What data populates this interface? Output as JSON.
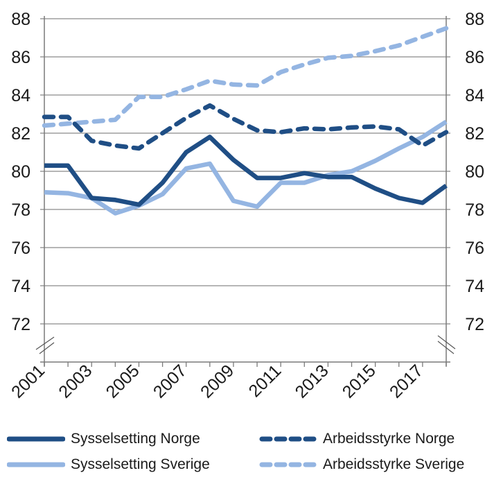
{
  "chart_data": {
    "type": "line",
    "title": "",
    "xlabel": "",
    "ylabel": "",
    "ylim": [
      72,
      88
    ],
    "y_axis_break": true,
    "y_ticks": [
      72,
      74,
      76,
      78,
      80,
      82,
      84,
      86,
      88
    ],
    "y_tick_labels": [
      "72",
      "74",
      "76",
      "78",
      "80",
      "82",
      "84",
      "86",
      "88"
    ],
    "secondary_y_ticks": [
      72,
      74,
      76,
      78,
      80,
      82,
      84,
      86,
      88
    ],
    "x": [
      2001,
      2002,
      2003,
      2004,
      2005,
      2006,
      2007,
      2008,
      2009,
      2010,
      2011,
      2012,
      2013,
      2014,
      2015,
      2016,
      2017,
      2018
    ],
    "x_tick_labels": [
      "2001",
      "2003",
      "2005",
      "2007",
      "2009",
      "2011",
      "2013",
      "2015",
      "2017"
    ],
    "grid": true,
    "legend_position": "bottom",
    "series": [
      {
        "name": "Sysselsetting Norge",
        "color": "#1f4e85",
        "style": "solid",
        "values": [
          80.3,
          80.3,
          78.6,
          78.5,
          78.25,
          79.4,
          81.0,
          81.8,
          80.6,
          79.65,
          79.65,
          79.9,
          79.7,
          79.7,
          79.1,
          78.6,
          78.35,
          79.25
        ]
      },
      {
        "name": "Sysselsetting Sverige",
        "color": "#94b5e2",
        "style": "solid",
        "values": [
          78.9,
          78.85,
          78.6,
          77.8,
          78.2,
          78.8,
          80.15,
          80.4,
          78.45,
          78.15,
          79.4,
          79.4,
          79.8,
          80.0,
          80.55,
          81.2,
          81.8,
          82.6
        ]
      },
      {
        "name": "Arbeidsstyrke Norge",
        "color": "#1f4e85",
        "style": "dashed",
        "values": [
          82.85,
          82.85,
          81.6,
          81.35,
          81.2,
          82.0,
          82.8,
          83.45,
          82.75,
          82.15,
          82.05,
          82.25,
          82.2,
          82.3,
          82.35,
          82.2,
          81.35,
          82.05
        ]
      },
      {
        "name": "Arbeidsstyrke Sverige",
        "color": "#94b5e2",
        "style": "dashed",
        "values": [
          82.4,
          82.5,
          82.6,
          82.7,
          83.9,
          83.9,
          84.3,
          84.75,
          84.55,
          84.5,
          85.2,
          85.6,
          85.95,
          86.05,
          86.3,
          86.6,
          87.05,
          87.5
        ]
      }
    ]
  },
  "legend": {
    "items": [
      {
        "label": "Sysselsetting Norge"
      },
      {
        "label": "Arbeidsstyrke Norge"
      },
      {
        "label": "Sysselsetting Sverige"
      },
      {
        "label": "Arbeidsstyrke Sverige"
      }
    ]
  }
}
